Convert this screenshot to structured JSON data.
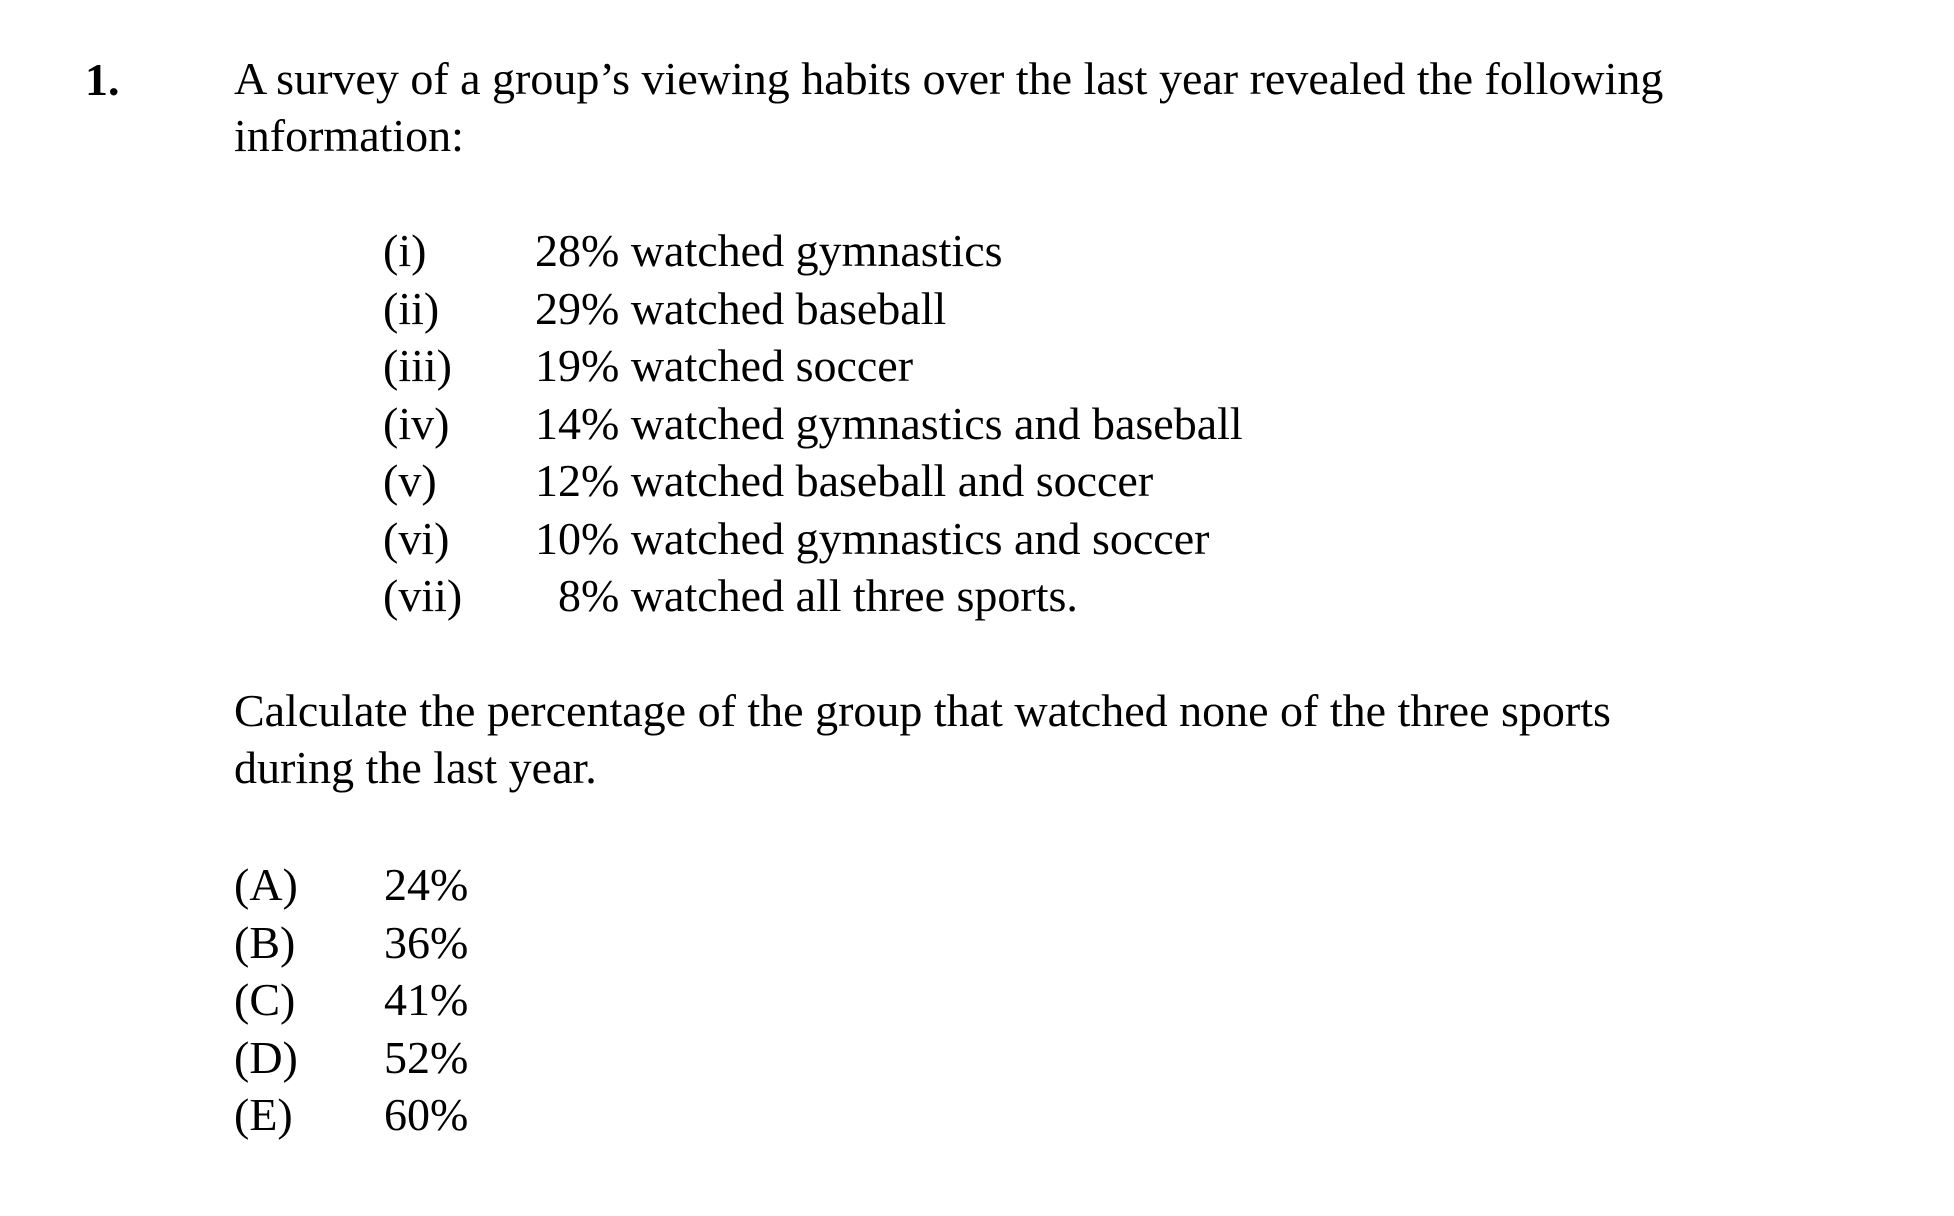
{
  "question": {
    "number": "1.",
    "stem_line1": "A survey of a group’s viewing habits over the last year revealed the following",
    "stem_line2": "information:",
    "facts": [
      {
        "label": "(i)",
        "text": "28% watched gymnastics"
      },
      {
        "label": "(ii)",
        "text": "29% watched baseball"
      },
      {
        "label": "(iii)",
        "text": "19% watched soccer"
      },
      {
        "label": "(iv)",
        "text": "14% watched gymnastics and baseball"
      },
      {
        "label": "(v)",
        "text": "12% watched baseball and soccer"
      },
      {
        "label": "(vi)",
        "text": "10% watched gymnastics and soccer"
      },
      {
        "label": "(vii)",
        "text": "  8% watched all three sports."
      }
    ],
    "prompt_line1": "Calculate the percentage of the group that watched none of the three sports",
    "prompt_line2": "during the last year.",
    "choices": [
      {
        "label": "(A)",
        "value": "24%"
      },
      {
        "label": "(B)",
        "value": "36%"
      },
      {
        "label": "(C)",
        "value": "41%"
      },
      {
        "label": "(D)",
        "value": "52%"
      },
      {
        "label": "(E)",
        "value": "60%"
      }
    ]
  }
}
